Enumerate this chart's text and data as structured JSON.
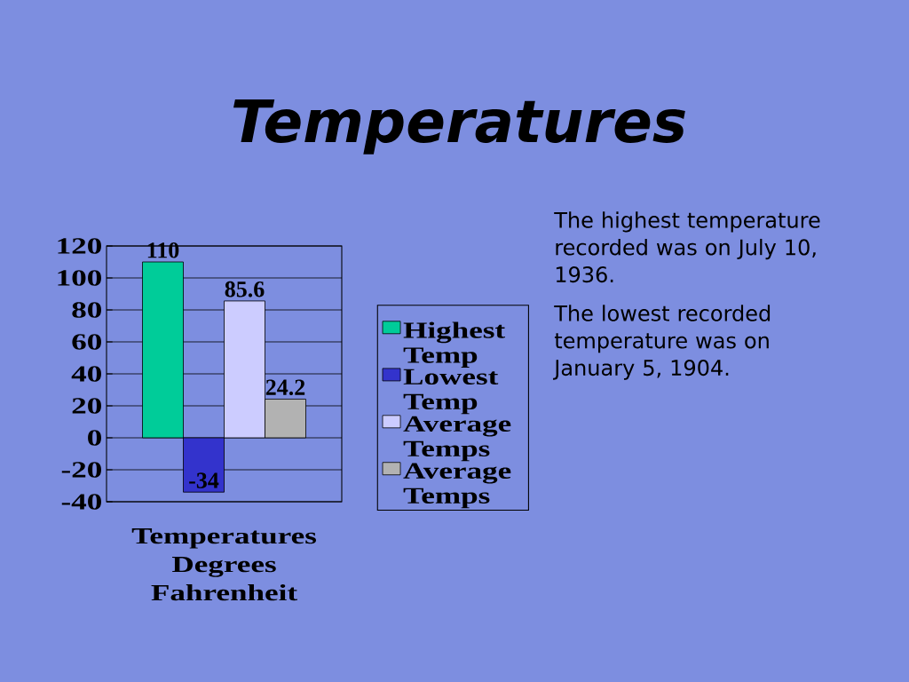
{
  "chart_data": {
    "type": "bar",
    "title": "Temperatures",
    "categories": [
      "Temperatures Degrees Fahrenheit"
    ],
    "series": [
      {
        "name": "Highest Temp",
        "color": "#00cc99",
        "values": [
          110
        ]
      },
      {
        "name": "Lowest Temp",
        "color": "#3333cc",
        "values": [
          -34
        ]
      },
      {
        "name": "Average Temps",
        "color": "#ccccff",
        "values": [
          85.6
        ]
      },
      {
        "name": "Average Temps",
        "color": "#b2b2b2",
        "values": [
          24.2
        ]
      }
    ],
    "ylim": [
      -40,
      120
    ],
    "yticks": [
      -40,
      -20,
      0,
      20,
      40,
      60,
      80,
      100,
      120
    ],
    "grid": "y",
    "legend": "right",
    "data_labels": true,
    "annotations": [
      "The highest temperature recorded was on July 10, 1936.",
      "The lowest recorded temperature was on January 5, 1904."
    ]
  }
}
